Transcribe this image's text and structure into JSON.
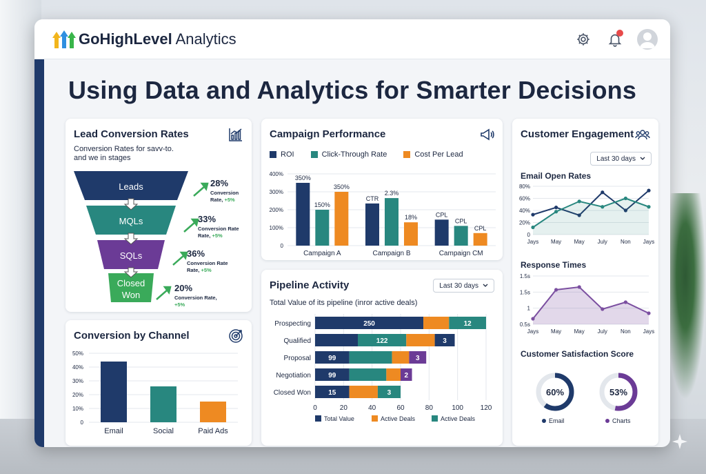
{
  "app": {
    "logo_bold": "GoHighLevel",
    "logo_light": " Analytics"
  },
  "headline": "Using Data and Analytics for Smarter Decisions",
  "colors": {
    "navy": "#1f3a6a",
    "teal": "#28877f",
    "purple": "#6b3b96",
    "green": "#3aaa5a",
    "orange": "#ee8a22",
    "text": "#1c2740"
  },
  "icons": {
    "settings": "gear-icon",
    "notifications": "bell-icon",
    "avatar": "user-avatar-icon"
  },
  "lead_conversion": {
    "title": "Lead Conversion Rates",
    "subtitle_line1": "Conversion Rates for savv-to.",
    "subtitle_line2": "and we in stages",
    "stages": [
      {
        "label": "Leads",
        "pct": "28%",
        "caption_line1": "Conversion",
        "caption_line2": "Rate,",
        "delta": "+5%"
      },
      {
        "label": "MQLs",
        "pct": "33%",
        "caption_line1": "Conversion Rate",
        "caption_line2": "Rate,",
        "delta": "+5%"
      },
      {
        "label": "SQLs",
        "pct": "36%",
        "caption_line1": "Conversion Rate",
        "caption_line2": "Rate,",
        "delta": "+5%"
      },
      {
        "label_line1": "Closed",
        "label_line2": "Won",
        "pct": "20%",
        "caption_line1": "Conversion Rate,",
        "caption_line2": "",
        "delta": "+5%"
      }
    ]
  },
  "conversion_channel": {
    "title": "Conversion by Channel",
    "chart_data": {
      "type": "bar",
      "categories": [
        "Email",
        "Social",
        "Paid Ads"
      ],
      "values": [
        44,
        26,
        15
      ],
      "ylim": [
        0,
        50
      ],
      "yticks": [
        "0",
        "10%",
        "20%",
        "30%",
        "40%",
        "50%"
      ],
      "colors": [
        "#1f3a6a",
        "#28877f",
        "#ee8a22"
      ]
    }
  },
  "campaign": {
    "title": "Campaign Performance",
    "legend": [
      "ROI",
      "Click-Through Rate",
      "Cost Per Lead"
    ],
    "yticks": [
      "0",
      "100%",
      "200%",
      "300%",
      "400%"
    ],
    "chart_data": {
      "type": "bar",
      "categories": [
        "Campaign A",
        "Campaign B",
        "Campaign CM"
      ],
      "series": [
        {
          "name": "ROI",
          "values": [
            350,
            235,
            145
          ],
          "labels": [
            "350%",
            "CTR",
            "CPL"
          ]
        },
        {
          "name": "Click-Through Rate",
          "values": [
            200,
            265,
            110
          ],
          "labels": [
            "150%",
            "2.3%",
            "CPL"
          ]
        },
        {
          "name": "Cost Per Lead",
          "values": [
            300,
            130,
            70
          ],
          "labels": [
            "350%",
            "18%",
            "CPL"
          ]
        }
      ],
      "ylim": [
        0,
        400
      ]
    }
  },
  "pipeline": {
    "title": "Pipeline Activity",
    "dropdown": "Last 30 days",
    "subtitle": "Total Value of its pipeline (inror active deals)",
    "legend": [
      "Total Value",
      "Active Deals",
      "Active Deals"
    ],
    "xticks": [
      "0",
      "20",
      "40",
      "60",
      "80",
      "100",
      "120"
    ],
    "chart_data": {
      "type": "bar",
      "stacked": true,
      "orientation": "horizontal",
      "categories": [
        "Prospecting",
        "Qualified",
        "Proposal",
        "Negotiation",
        "Closed Won"
      ],
      "xlim": [
        0,
        120
      ],
      "rows": [
        {
          "segments": [
            {
              "color": "#1f3a6a",
              "value": 76,
              "label": "250"
            },
            {
              "color": "#ee8a22",
              "value": 18,
              "label": ""
            },
            {
              "color": "#28877f",
              "value": 26,
              "label": "12"
            }
          ]
        },
        {
          "segments": [
            {
              "color": "#1f3a6a",
              "value": 30,
              "label": ""
            },
            {
              "color": "#28877f",
              "value": 34,
              "label": "122"
            },
            {
              "color": "#ee8a22",
              "value": 20,
              "label": ""
            },
            {
              "color": "#1f3a6a",
              "value": 14,
              "label": "3"
            }
          ]
        },
        {
          "segments": [
            {
              "color": "#1f3a6a",
              "value": 24,
              "label": "99"
            },
            {
              "color": "#28877f",
              "value": 30,
              "label": ""
            },
            {
              "color": "#ee8a22",
              "value": 12,
              "label": ""
            },
            {
              "color": "#6b3b96",
              "value": 12,
              "label": "3"
            }
          ]
        },
        {
          "segments": [
            {
              "color": "#1f3a6a",
              "value": 24,
              "label": "99"
            },
            {
              "color": "#28877f",
              "value": 26,
              "label": ""
            },
            {
              "color": "#ee8a22",
              "value": 10,
              "label": ""
            },
            {
              "color": "#6b3b96",
              "value": 8,
              "label": "2"
            }
          ]
        },
        {
          "segments": [
            {
              "color": "#1f3a6a",
              "value": 24,
              "label": "15"
            },
            {
              "color": "#ee8a22",
              "value": 20,
              "label": ""
            },
            {
              "color": "#28877f",
              "value": 16,
              "label": "3"
            }
          ]
        }
      ]
    }
  },
  "engagement": {
    "title": "Customer Engagement",
    "dropdown": "Last 30 days",
    "open_rates": {
      "title": "Email Open Rates",
      "yticks": [
        "0",
        "20%",
        "40%",
        "60%",
        "80%"
      ],
      "xticks": [
        "Jays",
        "May",
        "May",
        "July",
        "Non",
        "Jays"
      ],
      "chart_data": {
        "type": "line",
        "ylim": [
          0,
          80
        ],
        "series": [
          {
            "color": "#1f3a6a",
            "values": [
              33,
              45,
              32,
              70,
              40,
              73
            ]
          },
          {
            "color": "#28877f",
            "values": [
              12,
              38,
              55,
              46,
              60,
              46
            ]
          }
        ]
      }
    },
    "response_times": {
      "title": "Response Times",
      "yticks": [
        "0.5s",
        "1",
        "1.5s",
        "1.5s"
      ],
      "xticks": [
        "Jays",
        "May",
        "May",
        "July",
        "Non",
        "Jays"
      ],
      "chart_data": {
        "type": "area",
        "series": [
          {
            "color": "#7b4fa0",
            "values": [
              0.2,
              1.25,
              1.35,
              0.55,
              0.8,
              0.4
            ]
          }
        ]
      }
    },
    "satisfaction": {
      "title": "Customer Satisfaction Score",
      "gauges": [
        {
          "value": "60%",
          "fraction": 0.6,
          "label": "Email",
          "color": "#1f3a6a"
        },
        {
          "value": "53%",
          "fraction": 0.53,
          "label": "Charts",
          "color": "#6b3b96"
        }
      ]
    }
  }
}
